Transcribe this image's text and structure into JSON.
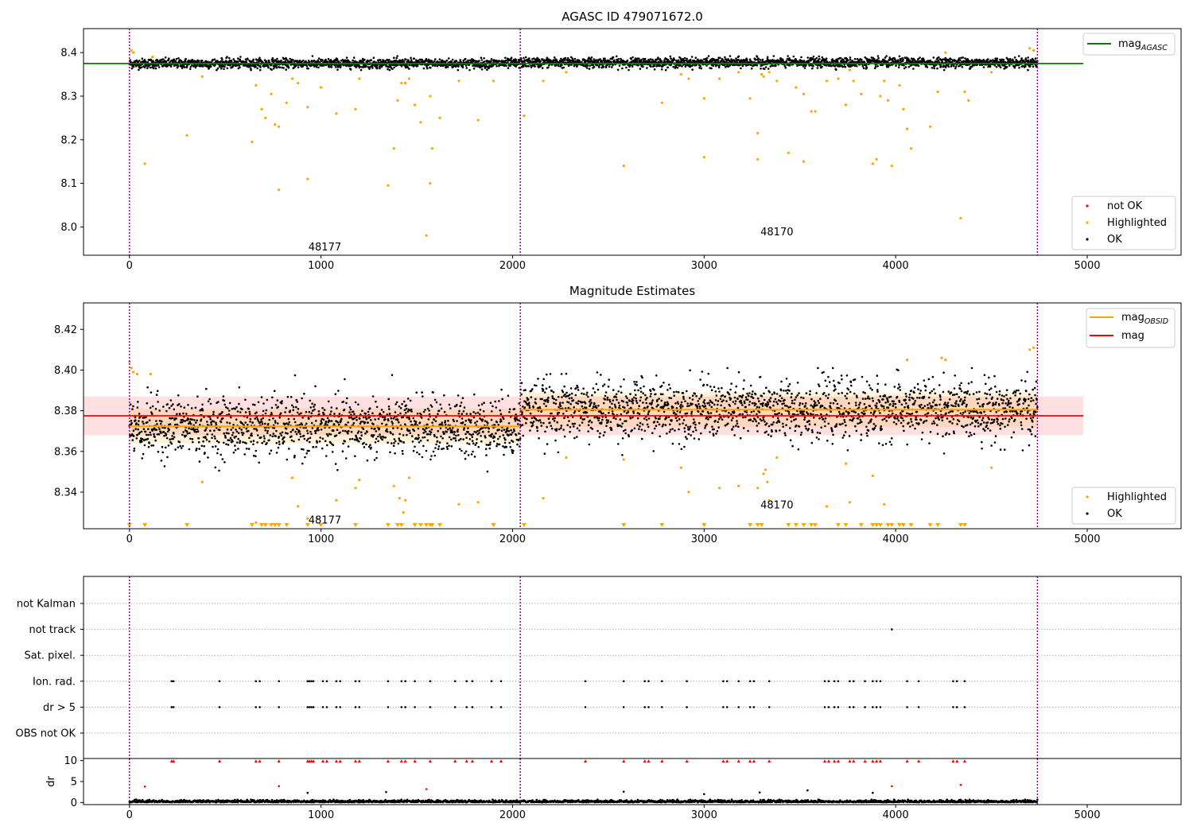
{
  "chart_data": [
    {
      "type": "scatter",
      "title": "AGASC ID 479071672.0",
      "xlim": [
        -240,
        5490
      ],
      "ylim": [
        7.935,
        8.455
      ],
      "x_ticks": [
        0,
        1000,
        2000,
        3000,
        4000,
        5000
      ],
      "y_ticks": [
        8.0,
        8.1,
        8.2,
        8.3,
        8.4
      ],
      "y_tick_labels": [
        "8.0",
        "8.1",
        "8.2",
        "8.3",
        "8.4"
      ],
      "obsid_boundaries": [
        0,
        2040,
        4740
      ],
      "obsid_labels": [
        {
          "text": "48177",
          "x": 1020,
          "y": 7.955
        },
        {
          "text": "48170",
          "x": 3380,
          "y": 7.99
        }
      ],
      "reference_lines": [
        {
          "name": "mag_AGASC",
          "value": 8.375,
          "x_range": [
            -240,
            4980
          ],
          "color": "#008000"
        }
      ],
      "ok_band": {
        "y_range": [
          8.36,
          8.392
        ],
        "level": 8.375,
        "x_range": [
          0,
          4740
        ]
      },
      "series": [
        {
          "name": "not OK",
          "color": "#ff0000",
          "values": []
        },
        {
          "name": "Highlighted",
          "color": "#ffa500",
          "points": [
            [
              0,
              8.285
            ],
            [
              10,
              8.405
            ],
            [
              20,
              8.4
            ],
            [
              80,
              8.145
            ],
            [
              120,
              8.39
            ],
            [
              300,
              8.21
            ],
            [
              380,
              8.345
            ],
            [
              640,
              8.195
            ],
            [
              660,
              8.325
            ],
            [
              690,
              8.27
            ],
            [
              710,
              8.25
            ],
            [
              740,
              8.305
            ],
            [
              760,
              8.235
            ],
            [
              780,
              8.23
            ],
            [
              780,
              8.085
            ],
            [
              820,
              8.285
            ],
            [
              850,
              8.34
            ],
            [
              880,
              8.33
            ],
            [
              930,
              8.275
            ],
            [
              930,
              8.11
            ],
            [
              1000,
              8.32
            ],
            [
              1080,
              8.26
            ],
            [
              1180,
              8.27
            ],
            [
              1200,
              8.34
            ],
            [
              1350,
              8.095
            ],
            [
              1380,
              8.18
            ],
            [
              1400,
              8.29
            ],
            [
              1420,
              8.33
            ],
            [
              1440,
              8.33
            ],
            [
              1460,
              8.34
            ],
            [
              1490,
              8.28
            ],
            [
              1520,
              8.24
            ],
            [
              1550,
              7.98
            ],
            [
              1570,
              8.1
            ],
            [
              1570,
              8.3
            ],
            [
              1580,
              8.18
            ],
            [
              1620,
              8.25
            ],
            [
              1720,
              8.335
            ],
            [
              1820,
              8.245
            ],
            [
              1900,
              8.335
            ],
            [
              2060,
              8.255
            ],
            [
              2160,
              8.335
            ],
            [
              2280,
              8.355
            ],
            [
              2580,
              8.14
            ],
            [
              2780,
              8.285
            ],
            [
              2880,
              8.35
            ],
            [
              2920,
              8.34
            ],
            [
              3000,
              8.16
            ],
            [
              3000,
              8.295
            ],
            [
              3080,
              8.34
            ],
            [
              3180,
              8.355
            ],
            [
              3240,
              8.295
            ],
            [
              3280,
              8.215
            ],
            [
              3280,
              8.155
            ],
            [
              3300,
              8.35
            ],
            [
              3310,
              8.345
            ],
            [
              3340,
              8.355
            ],
            [
              3380,
              8.335
            ],
            [
              3440,
              8.17
            ],
            [
              3480,
              8.32
            ],
            [
              3520,
              8.15
            ],
            [
              3520,
              8.305
            ],
            [
              3560,
              8.265
            ],
            [
              3580,
              8.265
            ],
            [
              3640,
              8.335
            ],
            [
              3700,
              8.34
            ],
            [
              3740,
              8.28
            ],
            [
              3760,
              8.36
            ],
            [
              3780,
              8.335
            ],
            [
              3820,
              8.305
            ],
            [
              3880,
              8.145
            ],
            [
              3900,
              8.155
            ],
            [
              3920,
              8.3
            ],
            [
              3940,
              8.335
            ],
            [
              3960,
              8.29
            ],
            [
              3980,
              8.14
            ],
            [
              4020,
              8.325
            ],
            [
              4040,
              8.27
            ],
            [
              4060,
              8.225
            ],
            [
              4080,
              8.18
            ],
            [
              4180,
              8.23
            ],
            [
              4220,
              8.31
            ],
            [
              4260,
              8.4
            ],
            [
              4340,
              8.02
            ],
            [
              4360,
              8.31
            ],
            [
              4380,
              8.29
            ],
            [
              4500,
              8.355
            ],
            [
              4700,
              8.41
            ],
            [
              4720,
              8.405
            ]
          ]
        },
        {
          "name": "OK",
          "color": "#000000",
          "values": []
        }
      ],
      "legends": [
        {
          "entries": [
            "mag_AGASC"
          ],
          "placement": "upper right"
        },
        {
          "entries": [
            "not OK",
            "Highlighted",
            "OK"
          ],
          "placement": "lower right"
        }
      ]
    },
    {
      "type": "scatter",
      "title": "Magnitude Estimates",
      "xlim": [
        -240,
        5490
      ],
      "ylim": [
        8.322,
        8.433
      ],
      "x_ticks": [
        0,
        1000,
        2000,
        3000,
        4000,
        5000
      ],
      "y_ticks": [
        8.34,
        8.36,
        8.38,
        8.4,
        8.42
      ],
      "y_tick_labels": [
        "8.34",
        "8.36",
        "8.38",
        "8.40",
        "8.42"
      ],
      "obsid_boundaries": [
        0,
        2040,
        4740
      ],
      "obsid_labels": [
        {
          "text": "48177",
          "x": 1020,
          "y": 8.3265
        },
        {
          "text": "48170",
          "x": 3380,
          "y": 8.334
        }
      ],
      "reference_lines": [
        {
          "name": "mag",
          "value": 8.3775,
          "x_range": [
            -240,
            4980
          ],
          "color": "#ff0000",
          "band": [
            8.368,
            8.387
          ]
        },
        {
          "name": "mag_OBSID",
          "segments": [
            {
              "x_range": [
                0,
                2040
              ],
              "value": 8.3723,
              "band": [
                8.364,
                8.381
              ]
            },
            {
              "x_range": [
                2040,
                4740
              ],
              "value": 8.3805,
              "band": [
                8.372,
                8.389
              ]
            }
          ],
          "color": "#ffa500"
        }
      ],
      "ok_segments": [
        {
          "x_range": [
            0,
            2040
          ],
          "level": 8.372,
          "spread": 0.0095
        },
        {
          "x_range": [
            2040,
            4740
          ],
          "level": 8.3805,
          "spread": 0.0095
        }
      ],
      "series": [
        {
          "name": "Highlighted",
          "color": "#ffa500",
          "points": [
            [
              0,
              8.404
            ],
            [
              10,
              8.401
            ],
            [
              20,
              8.399
            ],
            [
              40,
              8.398
            ],
            [
              110,
              8.398
            ],
            [
              380,
              8.345
            ],
            [
              640,
              8.324
            ],
            [
              660,
              8.325
            ],
            [
              850,
              8.347
            ],
            [
              880,
              8.333
            ],
            [
              930,
              8.327
            ],
            [
              980,
              8.327
            ],
            [
              1080,
              8.336
            ],
            [
              1180,
              8.342
            ],
            [
              1200,
              8.346
            ],
            [
              1380,
              8.343
            ],
            [
              1410,
              8.337
            ],
            [
              1430,
              8.33
            ],
            [
              1440,
              8.336
            ],
            [
              1460,
              8.347
            ],
            [
              1720,
              8.334
            ],
            [
              1820,
              8.335
            ],
            [
              2160,
              8.337
            ],
            [
              2280,
              8.357
            ],
            [
              2580,
              8.356
            ],
            [
              2880,
              8.352
            ],
            [
              2920,
              8.34
            ],
            [
              3080,
              8.342
            ],
            [
              3180,
              8.343
            ],
            [
              3280,
              8.342
            ],
            [
              3310,
              8.349
            ],
            [
              3320,
              8.351
            ],
            [
              3330,
              8.345
            ],
            [
              3340,
              8.336
            ],
            [
              3380,
              8.357
            ],
            [
              3640,
              8.333
            ],
            [
              3740,
              8.354
            ],
            [
              3760,
              8.335
            ],
            [
              3880,
              8.348
            ],
            [
              3940,
              8.334
            ],
            [
              4060,
              8.405
            ],
            [
              4240,
              8.406
            ],
            [
              4260,
              8.405
            ],
            [
              4500,
              8.352
            ],
            [
              4700,
              8.41
            ],
            [
              4720,
              8.411
            ]
          ]
        },
        {
          "name": "Highlighted (off-scale)",
          "color": "#ffa500",
          "values": [
            0,
            80,
            300,
            640,
            690,
            710,
            740,
            760,
            780,
            820,
            930,
            1000,
            1180,
            1350,
            1400,
            1420,
            1490,
            1520,
            1550,
            1570,
            1580,
            1620,
            1900,
            2060,
            2580,
            2780,
            3000,
            3240,
            3280,
            3300,
            3440,
            3480,
            3520,
            3560,
            3580,
            3700,
            3740,
            3820,
            3880,
            3900,
            3920,
            3960,
            3980,
            4020,
            4040,
            4080,
            4180,
            4220,
            4340,
            4360
          ]
        },
        {
          "name": "OK",
          "color": "#000000",
          "values": []
        }
      ],
      "legends": [
        {
          "entries": [
            "mag_OBSID",
            "mag"
          ],
          "placement": "upper right"
        },
        {
          "entries": [
            "Highlighted",
            "OK"
          ],
          "placement": "lower right"
        }
      ]
    },
    {
      "type": "scatter",
      "xlim": [
        -240,
        5490
      ],
      "obsid_boundaries": [
        0,
        2040,
        4740
      ],
      "categories": [
        "OBS not OK",
        "dr > 5",
        "Ion. rad.",
        "Sat. pixel.",
        "not track",
        "not Kalman"
      ],
      "flags": {
        "not track": [
          3980
        ],
        "Ion. rad.": [
          220,
          230,
          470,
          660,
          680,
          780,
          930,
          940,
          950,
          960,
          1010,
          1030,
          1080,
          1100,
          1180,
          1200,
          1350,
          1420,
          1440,
          1490,
          1570,
          1700,
          1760,
          1790,
          1890,
          1940,
          2380,
          2580,
          2690,
          2710,
          2780,
          2910,
          3100,
          3120,
          3180,
          3240,
          3260,
          3340,
          3630,
          3650,
          3680,
          3700,
          3760,
          3780,
          3840,
          3880,
          3900,
          3920,
          4060,
          4120,
          4300,
          4320,
          4360
        ],
        "dr > 5": [
          220,
          230,
          470,
          660,
          680,
          780,
          930,
          940,
          950,
          960,
          1010,
          1030,
          1080,
          1100,
          1180,
          1200,
          1350,
          1420,
          1440,
          1490,
          1570,
          1700,
          1760,
          1790,
          1890,
          1940,
          2380,
          2580,
          2690,
          2710,
          2780,
          2910,
          3100,
          3120,
          3180,
          3240,
          3260,
          3340,
          3630,
          3650,
          3680,
          3700,
          3760,
          3780,
          3840,
          3880,
          3900,
          3920,
          4060,
          4120,
          4300,
          4320,
          4360
        ]
      }
    },
    {
      "type": "scatter",
      "xlim": [
        -240,
        5490
      ],
      "ylim": [
        -0.5,
        10.5
      ],
      "ylabel": "dr",
      "x_ticks": [
        0,
        1000,
        2000,
        3000,
        4000,
        5000
      ],
      "y_ticks": [
        0,
        5,
        10
      ],
      "obsid_boundaries": [
        0,
        2040,
        4740
      ],
      "dr_baseline": [
        0.05,
        0.7
      ],
      "red_markers": {
        "y": 9.9,
        "x": [
          220,
          230,
          470,
          660,
          680,
          780,
          930,
          940,
          950,
          960,
          1010,
          1030,
          1080,
          1100,
          1180,
          1200,
          1350,
          1420,
          1440,
          1490,
          1570,
          1700,
          1760,
          1790,
          1890,
          1940,
          2380,
          2580,
          2690,
          2710,
          2780,
          2910,
          3100,
          3120,
          3180,
          3240,
          3260,
          3340,
          3630,
          3650,
          3680,
          3700,
          3760,
          3780,
          3840,
          3880,
          3900,
          3920,
          4060,
          4120,
          4300,
          4320,
          4360
        ]
      },
      "red_points": [
        [
          80,
          3.8
        ],
        [
          780,
          3.9
        ],
        [
          1550,
          3.2
        ],
        [
          3980,
          3.9
        ],
        [
          4340,
          4.2
        ]
      ],
      "outliers": [
        [
          930,
          2.3
        ],
        [
          1340,
          2.5
        ],
        [
          2580,
          2.6
        ],
        [
          3000,
          2.0
        ],
        [
          3290,
          2.4
        ],
        [
          3540,
          2.9
        ],
        [
          3880,
          2.3
        ]
      ]
    }
  ]
}
